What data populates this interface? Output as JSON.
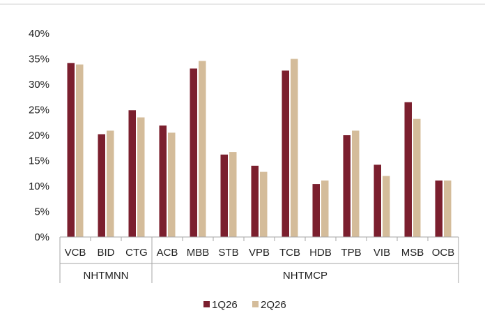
{
  "chart_data": {
    "type": "bar",
    "categories": [
      "VCB",
      "BID",
      "CTG",
      "ACB",
      "MBB",
      "STB",
      "VPB",
      "TCB",
      "HDB",
      "TPB",
      "VIB",
      "MSB",
      "OCB"
    ],
    "groups": [
      {
        "label": "NHTMNN",
        "categories": [
          "VCB",
          "BID",
          "CTG"
        ]
      },
      {
        "label": "NHTMCP",
        "categories": [
          "ACB",
          "MBB",
          "STB",
          "VPB",
          "TCB",
          "HDB",
          "TPB",
          "VIB",
          "MSB",
          "OCB"
        ]
      }
    ],
    "series": [
      {
        "name": "1Q26",
        "color": "#7b1f2e",
        "values": [
          34.2,
          20.2,
          24.9,
          21.9,
          33.1,
          16.2,
          14.0,
          32.7,
          10.4,
          20.0,
          14.2,
          26.5,
          11.1
        ]
      },
      {
        "name": "2Q26",
        "color": "#d4bc9a",
        "values": [
          33.9,
          20.9,
          23.5,
          20.5,
          34.6,
          16.7,
          12.8,
          35.0,
          11.1,
          20.9,
          12.0,
          23.2,
          11.1
        ]
      }
    ],
    "ylim": [
      0,
      40
    ],
    "yticks": [
      "0%",
      "5%",
      "10%",
      "15%",
      "20%",
      "25%",
      "30%",
      "35%",
      "40%"
    ],
    "legend_position": "bottom-center",
    "grid": false
  }
}
